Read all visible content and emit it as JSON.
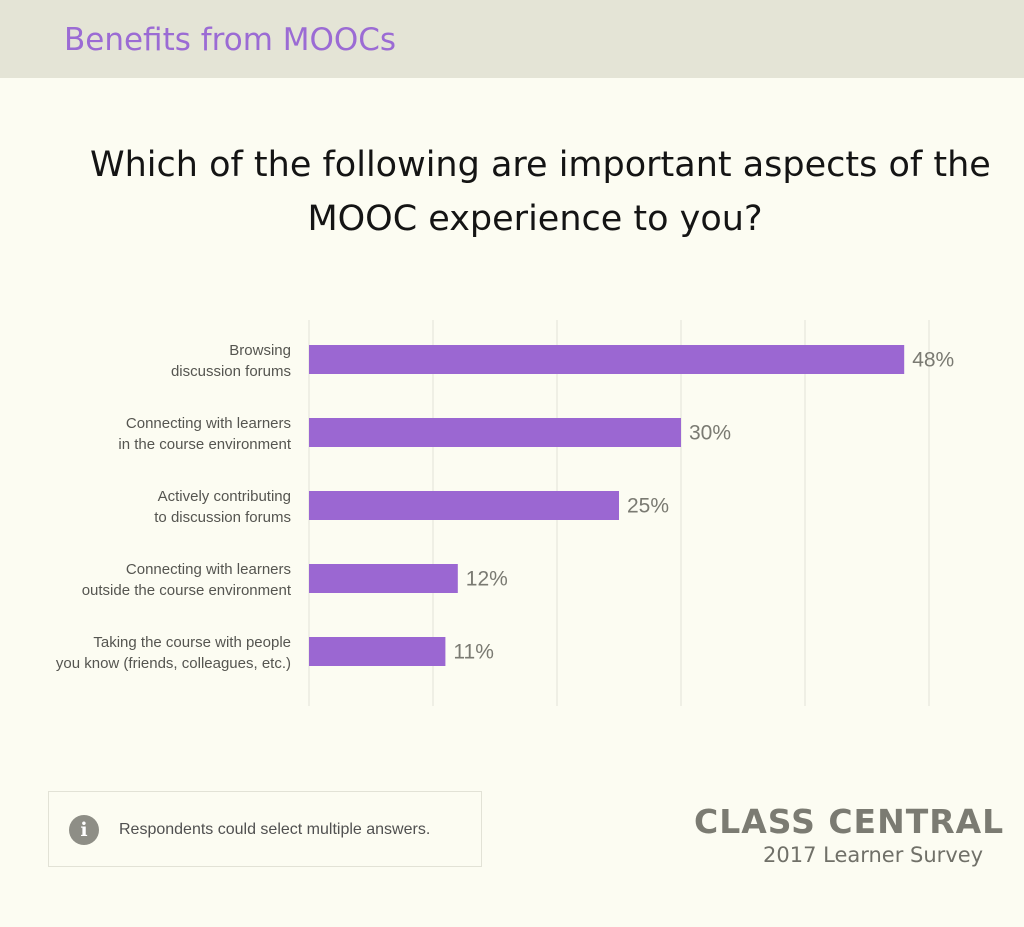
{
  "header": {
    "title": "Benefits from MOOCs"
  },
  "question": {
    "line1": "Which of the following are important aspects of the",
    "line2": "MOOC experience to you?"
  },
  "chart_data": {
    "type": "bar",
    "orientation": "horizontal",
    "title": "Which of the following are important aspects of the MOOC experience to you?",
    "categories": [
      [
        "Browsing",
        "discussion forums"
      ],
      [
        "Connecting with learners",
        "in the course environment"
      ],
      [
        "Actively contributing",
        "to discussion forums"
      ],
      [
        "Connecting with learners",
        "outside the course environment"
      ],
      [
        "Taking the course with people",
        "you know (friends, colleagues, etc.)"
      ]
    ],
    "values": [
      48,
      30,
      25,
      12,
      11
    ],
    "value_labels": [
      "48%",
      "30%",
      "25%",
      "12%",
      "11%"
    ],
    "xlim": [
      0,
      50
    ],
    "gridlines": [
      0,
      10,
      20,
      30,
      40,
      50
    ],
    "grid": true,
    "bar_color": "#9b67d2"
  },
  "note": {
    "icon": "info-icon",
    "text": "Respondents could select multiple answers."
  },
  "brand": {
    "name": "CLASS CENTRAL",
    "subtitle": "2017 Learner Survey"
  }
}
